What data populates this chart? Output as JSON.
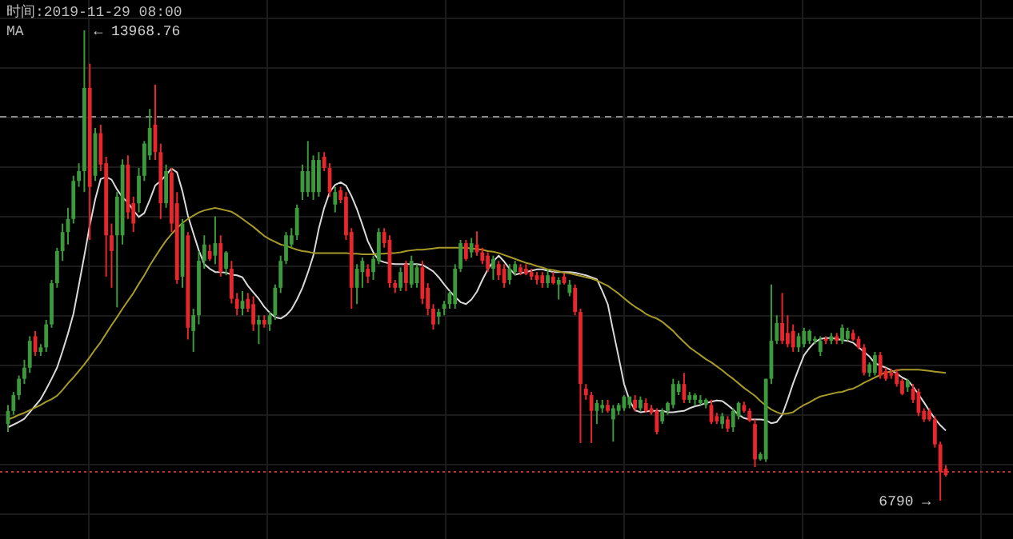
{
  "chart_data": {
    "type": "candlestick",
    "title": "时间:2019-11-29 08:00",
    "legend_title": "MA",
    "grid": true,
    "categories": [
      null,
      null,
      null,
      null,
      null,
      null,
      null,
      null,
      null,
      null,
      null,
      null,
      null,
      null,
      null,
      null,
      null,
      null,
      null,
      null,
      null,
      null,
      null,
      null,
      null,
      null,
      null,
      null,
      null,
      null,
      null,
      null,
      null,
      null,
      null,
      null,
      null,
      null,
      null,
      null,
      null,
      null,
      null,
      null,
      null,
      null,
      null,
      null,
      null,
      null,
      null,
      null,
      null,
      null,
      null,
      null,
      null,
      null,
      null,
      null,
      null,
      null,
      null,
      null,
      null,
      null,
      null,
      null,
      null,
      null,
      null,
      null,
      null,
      null,
      null,
      null,
      null,
      null,
      null,
      null,
      null,
      null,
      null,
      null,
      null,
      null,
      null,
      null,
      null,
      null,
      null,
      null,
      null,
      null,
      null,
      null,
      null,
      null,
      null,
      null,
      null,
      null,
      null,
      null,
      null,
      null,
      null,
      null,
      null,
      null,
      null,
      null,
      null,
      null,
      null,
      null,
      null,
      null,
      null,
      null,
      null,
      null,
      null,
      null,
      null,
      null,
      null,
      null,
      null,
      null,
      null,
      null,
      null,
      null,
      null,
      null,
      null,
      null,
      null,
      null,
      null,
      null,
      null,
      null,
      null,
      null,
      null,
      null,
      null,
      null,
      null,
      null,
      null,
      null,
      null,
      null,
      null,
      null,
      null,
      null,
      null,
      null,
      null,
      null,
      null,
      null,
      null,
      null,
      null,
      null,
      null,
      null,
      null
    ],
    "colors": [
      "#3c9a3c",
      "#3c9a3c",
      "#3c9a3c",
      "#3c9a3c",
      "#3c9a3c",
      "#e8262b",
      "#3c9a3c",
      "#3c9a3c",
      "#3c9a3c",
      "#3c9a3c",
      "#3c9a3c",
      "#3c9a3c",
      "#3c9a3c",
      "#3c9a3c",
      "#3c9a3c",
      "#e8262b",
      "#3c9a3c",
      "#e8262b",
      "#e8262b",
      "#e8262b",
      "#3c9a3c",
      "#3c9a3c",
      "#e8262b",
      "#e8262b",
      "#3c9a3c",
      "#3c9a3c",
      "#3c9a3c",
      "#e8262b",
      "#e8262b",
      "#3c9a3c",
      "#e8262b",
      "#e8262b",
      "#3c9a3c",
      "#e8262b",
      "#3c9a3c",
      "#3c9a3c",
      "#3c9a3c",
      "#e8262b",
      "#3c9a3c",
      "#e8262b",
      "#3c9a3c",
      "#e8262b",
      "#e8262b",
      "#3c9a3c",
      "#e8262b",
      "#e8262b",
      "#3c9a3c",
      "#e8262b",
      "#3c9a3c",
      "#3c9a3c",
      "#3c9a3c",
      "#3c9a3c",
      "#3c9a3c",
      "#3c9a3c",
      "#3c9a3c",
      "#3c9a3c",
      "#3c9a3c",
      "#3c9a3c",
      "#e8262b",
      "#e8262b",
      "#3c9a3c",
      "#e8262b",
      "#e8262b",
      "#e8262b",
      "#3c9a3c",
      "#3c9a3c",
      "#e8262b",
      "#3c9a3c",
      "#3c9a3c",
      "#e8262b",
      "#e8262b",
      "#e8262b",
      "#3c9a3c",
      "#e8262b",
      "#3c9a3c",
      "#3c9a3c",
      "#e8262b",
      "#e8262b",
      "#e8262b",
      "#3c9a3c",
      "#3c9a3c",
      "#3c9a3c",
      "#3c9a3c",
      "#3c9a3c",
      "#e8262b",
      "#3c9a3c",
      "#e8262b",
      "#e8262b",
      "#e8262b",
      "#3c9a3c",
      "#e8262b",
      "#e8262b",
      "#3c9a3c",
      "#3c9a3c",
      "#e8262b",
      "#e8262b",
      "#e8262b",
      "#e8262b",
      "#e8262b",
      "#3c9a3c",
      "#e8262b",
      "#3c9a3c",
      "#e8262b",
      "#3c9a3c",
      "#e8262b",
      "#e8262b",
      "#e8262b",
      "#e8262b",
      "#3c9a3c",
      "#3c9a3c",
      "#e8262b",
      "#3c9a3c",
      "#3c9a3c",
      "#3c9a3c",
      "#3c9a3c",
      "#e8262b",
      "#3c9a3c",
      "#e8262b",
      "#e8262b",
      "#e8262b",
      "#3c9a3c",
      "#3c9a3c",
      "#3c9a3c",
      "#3c9a3c",
      "#e8262b",
      "#3c9a3c",
      "#3c9a3c",
      "#3c9a3c",
      "#3c9a3c",
      "#e8262b",
      "#e8262b",
      "#3c9a3c",
      "#e8262b",
      "#3c9a3c",
      "#3c9a3c",
      "#e8262b",
      "#e8262b",
      "#e8262b",
      "#3c9a3c",
      "#3c9a3c",
      "#3c9a3c",
      "#3c9a3c",
      "#e8262b",
      "#e8262b",
      "#e8262b",
      "#3c9a3c",
      "#3c9a3c",
      "#3c9a3c",
      "#3c9a3c",
      "#3c9a3c",
      "#e8262b",
      "#3c9a3c",
      "#e8262b",
      "#3c9a3c",
      "#3c9a3c",
      "#e8262b",
      "#e8262b",
      "#e8262b",
      "#3c9a3c",
      "#3c9a3c",
      "#e8262b",
      "#e8262b",
      "#e8262b",
      "#e8262b",
      "#e8262b",
      "#3c9a3c",
      "#e8262b",
      "#e8262b",
      "#e8262b",
      "#e8262b",
      "#e8262b",
      "#e8262b",
      "#e8262b"
    ],
    "ohlc": [
      [
        7960,
        8250,
        7840,
        8160
      ],
      [
        8160,
        8450,
        8100,
        8400
      ],
      [
        8400,
        8700,
        8330,
        8650
      ],
      [
        8650,
        8940,
        8570,
        8820
      ],
      [
        8820,
        9300,
        8740,
        9230
      ],
      [
        9300,
        9380,
        9000,
        9060
      ],
      [
        9060,
        9180,
        9000,
        9130
      ],
      [
        9130,
        9550,
        9060,
        9480
      ],
      [
        9480,
        10160,
        9430,
        10110
      ],
      [
        10110,
        10650,
        10040,
        10600
      ],
      [
        10600,
        11020,
        10450,
        10890
      ],
      [
        10890,
        11260,
        10700,
        11090
      ],
      [
        11090,
        11750,
        11020,
        11670
      ],
      [
        11670,
        11940,
        11580,
        11820
      ],
      [
        11820,
        13968.76,
        11500,
        13090
      ],
      [
        13090,
        13460,
        10770,
        11580
      ],
      [
        11750,
        12480,
        11670,
        12400
      ],
      [
        12400,
        12530,
        11820,
        11920
      ],
      [
        11940,
        12040,
        10210,
        10840
      ],
      [
        10840,
        11020,
        10040,
        10600
      ],
      [
        10840,
        11500,
        9740,
        11430
      ],
      [
        10840,
        12000,
        10700,
        11920
      ],
      [
        11920,
        12060,
        11090,
        11190
      ],
      [
        11330,
        11430,
        10890,
        11020
      ],
      [
        11330,
        11870,
        11190,
        11750
      ],
      [
        11750,
        12280,
        11670,
        12240
      ],
      [
        12060,
        12770,
        11990,
        12480
      ],
      [
        12530,
        13140,
        11990,
        12110
      ],
      [
        12110,
        12240,
        11090,
        11330
      ],
      [
        11330,
        11920,
        11260,
        11820
      ],
      [
        11800,
        11870,
        10890,
        11020
      ],
      [
        11330,
        11500,
        10100,
        10160
      ],
      [
        10210,
        11090,
        10040,
        11020
      ],
      [
        10840,
        10890,
        9250,
        9430
      ],
      [
        9380,
        9720,
        9060,
        9620
      ],
      [
        9620,
        10600,
        9480,
        10450
      ],
      [
        10450,
        10840,
        10330,
        10700
      ],
      [
        10600,
        10700,
        10450,
        10480
      ],
      [
        10530,
        11130,
        10400,
        10720
      ],
      [
        10720,
        10840,
        10210,
        10280
      ],
      [
        10330,
        10600,
        10230,
        10580
      ],
      [
        10330,
        10450,
        9800,
        9870
      ],
      [
        9870,
        9960,
        9620,
        9720
      ],
      [
        9720,
        9990,
        9620,
        9840
      ],
      [
        9870,
        9960,
        9670,
        9720
      ],
      [
        9790,
        9910,
        9380,
        9480
      ],
      [
        9480,
        9620,
        9180,
        9550
      ],
      [
        9550,
        9620,
        9430,
        9480
      ],
      [
        9480,
        9670,
        9380,
        9620
      ],
      [
        9620,
        10090,
        9550,
        10040
      ],
      [
        10040,
        10530,
        9960,
        10450
      ],
      [
        10450,
        10890,
        10400,
        10840
      ],
      [
        10700,
        10950,
        10650,
        10840
      ],
      [
        10840,
        11310,
        10770,
        11260
      ],
      [
        11500,
        11920,
        11380,
        11820
      ],
      [
        11500,
        12280,
        11430,
        11820
      ],
      [
        11500,
        12060,
        11380,
        11990
      ],
      [
        11500,
        12110,
        11430,
        11990
      ],
      [
        12040,
        12110,
        11820,
        11870
      ],
      [
        11870,
        11940,
        11430,
        11500
      ],
      [
        11310,
        11580,
        11190,
        11500
      ],
      [
        11530,
        11580,
        11330,
        11380
      ],
      [
        11430,
        11500,
        10770,
        10840
      ],
      [
        10890,
        10950,
        9720,
        10040
      ],
      [
        10040,
        10400,
        9790,
        10330
      ],
      [
        10280,
        10500,
        10040,
        10450
      ],
      [
        10330,
        10400,
        10110,
        10210
      ],
      [
        10280,
        10530,
        10160,
        10480
      ],
      [
        10450,
        10950,
        10400,
        10890
      ],
      [
        10890,
        10950,
        10650,
        10720
      ],
      [
        10770,
        10840,
        10040,
        10110
      ],
      [
        10110,
        10160,
        9960,
        10040
      ],
      [
        10040,
        10350,
        9990,
        10280
      ],
      [
        10400,
        10450,
        9990,
        10110
      ],
      [
        10090,
        10530,
        10040,
        10450
      ],
      [
        10110,
        10400,
        10040,
        10350
      ],
      [
        10350,
        10450,
        9790,
        9870
      ],
      [
        10040,
        10110,
        9620,
        9720
      ],
      [
        9720,
        9790,
        9400,
        9480
      ],
      [
        9600,
        9720,
        9480,
        9670
      ],
      [
        9720,
        9840,
        9620,
        9790
      ],
      [
        9790,
        9990,
        9720,
        9960
      ],
      [
        9790,
        10400,
        9720,
        10330
      ],
      [
        10330,
        10770,
        10280,
        10720
      ],
      [
        10720,
        10770,
        10450,
        10480
      ],
      [
        10580,
        10800,
        10500,
        10720
      ],
      [
        10700,
        10900,
        10530,
        10580
      ],
      [
        10580,
        10650,
        10400,
        10450
      ],
      [
        10530,
        10580,
        10280,
        10330
      ],
      [
        10330,
        10530,
        10160,
        10480
      ],
      [
        10400,
        10450,
        10160,
        10230
      ],
      [
        10330,
        10400,
        10040,
        10110
      ],
      [
        10160,
        10400,
        10090,
        10330
      ],
      [
        10280,
        10450,
        10230,
        10400
      ],
      [
        10350,
        10400,
        10230,
        10280
      ],
      [
        10330,
        10400,
        10230,
        10250
      ],
      [
        10280,
        10330,
        10160,
        10210
      ],
      [
        10230,
        10280,
        10090,
        10160
      ],
      [
        10230,
        10280,
        10040,
        10110
      ],
      [
        10110,
        10330,
        10040,
        10230
      ],
      [
        10210,
        10280,
        10090,
        10110
      ],
      [
        10090,
        10200,
        9860,
        10160
      ],
      [
        10210,
        10260,
        10090,
        10110
      ],
      [
        9960,
        10160,
        9910,
        10090
      ],
      [
        10040,
        10090,
        9620,
        9670
      ],
      [
        9670,
        9720,
        7670,
        8570
      ],
      [
        8500,
        8570,
        8330,
        8400
      ],
      [
        8400,
        8450,
        7670,
        8160
      ],
      [
        8160,
        8330,
        7960,
        8280
      ],
      [
        8200,
        8330,
        8130,
        8250
      ],
      [
        8250,
        8330,
        8130,
        8160
      ],
      [
        8030,
        8250,
        7690,
        8200
      ],
      [
        8160,
        8280,
        8100,
        8250
      ],
      [
        8200,
        8400,
        8160,
        8380
      ],
      [
        8250,
        8380,
        8200,
        8380
      ],
      [
        8330,
        8400,
        8150,
        8200
      ],
      [
        8200,
        8380,
        8160,
        8330
      ],
      [
        8280,
        8350,
        8130,
        8160
      ],
      [
        8200,
        8250,
        8100,
        8130
      ],
      [
        8160,
        8200,
        7800,
        7840
      ],
      [
        8000,
        8200,
        7960,
        8160
      ],
      [
        8160,
        8300,
        8100,
        8280
      ],
      [
        8250,
        8650,
        8200,
        8570
      ],
      [
        8450,
        8620,
        8400,
        8570
      ],
      [
        8570,
        8740,
        8280,
        8330
      ],
      [
        8330,
        8450,
        8280,
        8400
      ],
      [
        8330,
        8430,
        8250,
        8400
      ],
      [
        8280,
        8400,
        8250,
        8330
      ],
      [
        8250,
        8350,
        8200,
        8330
      ],
      [
        8250,
        8330,
        7960,
        7990
      ],
      [
        8080,
        8130,
        7960,
        8000
      ],
      [
        7960,
        8130,
        7890,
        8080
      ],
      [
        8030,
        8080,
        7840,
        7890
      ],
      [
        7910,
        8200,
        7840,
        8160
      ],
      [
        8080,
        8300,
        8030,
        8280
      ],
      [
        8250,
        8300,
        8130,
        8160
      ],
      [
        8160,
        8200,
        7990,
        8010
      ],
      [
        7960,
        8030,
        7300,
        7420
      ],
      [
        7420,
        7530,
        7400,
        7500
      ],
      [
        7420,
        8650,
        7380,
        8650
      ],
      [
        8650,
        10090,
        8570,
        9230
      ],
      [
        9230,
        9620,
        9180,
        9500
      ],
      [
        9500,
        9960,
        9180,
        9230
      ],
      [
        9350,
        9620,
        9130,
        9180
      ],
      [
        9380,
        9480,
        9060,
        9130
      ],
      [
        9130,
        9350,
        9060,
        9300
      ],
      [
        9180,
        9430,
        9130,
        9380
      ],
      [
        9230,
        9400,
        9180,
        9380
      ],
      [
        9230,
        9300,
        9180,
        9260
      ],
      [
        9060,
        9300,
        9000,
        9230
      ],
      [
        9260,
        9300,
        9180,
        9230
      ],
      [
        9230,
        9350,
        9180,
        9300
      ],
      [
        9300,
        9350,
        9180,
        9230
      ],
      [
        9230,
        9480,
        9180,
        9430
      ],
      [
        9260,
        9430,
        9230,
        9380
      ],
      [
        9350,
        9400,
        9230,
        9250
      ],
      [
        9260,
        9300,
        9100,
        9130
      ],
      [
        9130,
        9180,
        8700,
        8740
      ],
      [
        8740,
        8900,
        8680,
        8870
      ],
      [
        8740,
        9060,
        8700,
        9010
      ],
      [
        9010,
        9060,
        8650,
        8700
      ],
      [
        8770,
        8820,
        8620,
        8650
      ],
      [
        8740,
        8800,
        8650,
        8700
      ],
      [
        8740,
        8800,
        8530,
        8570
      ],
      [
        8620,
        8650,
        8400,
        8420
      ],
      [
        8520,
        8650,
        8450,
        8620
      ],
      [
        8500,
        8570,
        8280,
        8330
      ],
      [
        8450,
        8500,
        8080,
        8130
      ],
      [
        8160,
        8200,
        7990,
        8030
      ],
      [
        8160,
        8200,
        8000,
        8030
      ],
      [
        8030,
        8080,
        7600,
        7650
      ],
      [
        7650,
        7690,
        6790,
        7230
      ],
      [
        7280,
        7330,
        7160,
        7180
      ]
    ],
    "series": [
      {
        "type": "line",
        "color": "#d9d9d9",
        "values": [
          7910,
          7950,
          7990,
          8040,
          8140,
          8240,
          8340,
          8490,
          8650,
          8820,
          9070,
          9340,
          9640,
          10080,
          10530,
          10990,
          11390,
          11700,
          11730,
          11690,
          11540,
          11420,
          11340,
          11220,
          11120,
          11180,
          11380,
          11600,
          11670,
          11760,
          11860,
          11800,
          11510,
          11140,
          10870,
          10610,
          10400,
          10330,
          10280,
          10280,
          10270,
          10240,
          10230,
          10200,
          10070,
          9970,
          9870,
          9750,
          9660,
          9590,
          9570,
          9620,
          9710,
          9860,
          10040,
          10270,
          10530,
          10940,
          11260,
          11500,
          11610,
          11650,
          11600,
          11440,
          11240,
          11000,
          10750,
          10580,
          10460,
          10430,
          10410,
          10400,
          10400,
          10400,
          10400,
          10400,
          10390,
          10340,
          10290,
          10200,
          10090,
          9990,
          9900,
          9820,
          9790,
          9860,
          9980,
          10160,
          10320,
          10440,
          10530,
          10440,
          10330,
          10240,
          10260,
          10280,
          10300,
          10320,
          10320,
          10300,
          10280,
          10280,
          10280,
          10280,
          10270,
          10250,
          10230,
          10200,
          10170,
          9990,
          9790,
          9380,
          8980,
          8570,
          8320,
          8170,
          8140,
          8150,
          8160,
          8160,
          8160,
          8140,
          8140,
          8150,
          8160,
          8200,
          8230,
          8250,
          8280,
          8300,
          8320,
          8310,
          8250,
          8180,
          8100,
          8050,
          8030,
          8030,
          8030,
          8020,
          7970,
          7990,
          8100,
          8330,
          8580,
          8800,
          9010,
          9120,
          9210,
          9260,
          9270,
          9270,
          9260,
          9240,
          9230,
          9200,
          9130,
          9060,
          8990,
          8890,
          8850,
          8820,
          8780,
          8730,
          8670,
          8630,
          8530,
          8410,
          8290,
          8160,
          8040,
          7940,
          7860
        ]
      },
      {
        "type": "line",
        "color": "#a89a2a",
        "values": [
          8030,
          8060,
          8100,
          8130,
          8170,
          8210,
          8250,
          8300,
          8340,
          8390,
          8480,
          8580,
          8670,
          8770,
          8870,
          8980,
          9100,
          9210,
          9340,
          9470,
          9590,
          9720,
          9840,
          9960,
          10100,
          10230,
          10380,
          10510,
          10640,
          10760,
          10860,
          10950,
          11030,
          11090,
          11140,
          11190,
          11220,
          11240,
          11260,
          11240,
          11220,
          11200,
          11150,
          11090,
          11030,
          10970,
          10900,
          10830,
          10780,
          10740,
          10700,
          10680,
          10650,
          10620,
          10600,
          10590,
          10570,
          10570,
          10570,
          10570,
          10570,
          10570,
          10570,
          10560,
          10560,
          10550,
          10550,
          10550,
          10560,
          10560,
          10570,
          10570,
          10580,
          10600,
          10610,
          10620,
          10620,
          10630,
          10640,
          10650,
          10650,
          10650,
          10650,
          10650,
          10650,
          10640,
          10630,
          10620,
          10600,
          10590,
          10570,
          10540,
          10510,
          10480,
          10450,
          10420,
          10400,
          10370,
          10350,
          10320,
          10310,
          10290,
          10270,
          10260,
          10240,
          10220,
          10200,
          10180,
          10150,
          10110,
          10070,
          10010,
          9950,
          9880,
          9810,
          9750,
          9700,
          9640,
          9600,
          9570,
          9520,
          9450,
          9380,
          9290,
          9210,
          9130,
          9070,
          9010,
          8950,
          8900,
          8840,
          8780,
          8710,
          8650,
          8580,
          8510,
          8450,
          8390,
          8310,
          8240,
          8180,
          8140,
          8110,
          8120,
          8140,
          8200,
          8250,
          8290,
          8340,
          8380,
          8400,
          8420,
          8440,
          8450,
          8480,
          8500,
          8540,
          8590,
          8630,
          8670,
          8710,
          8750,
          8760,
          8780,
          8790,
          8790,
          8790,
          8790,
          8780,
          8770,
          8760,
          8750,
          8740
        ]
      }
    ],
    "ref_lines": [
      {
        "axis": "y",
        "value": 12650,
        "color": "#8a8a8a",
        "line_style": "dashed"
      },
      {
        "axis": "y",
        "value": 7230,
        "color": "#c0302f",
        "line_style": "dotted"
      }
    ],
    "annotations": [
      "← 13968.76",
      "6790 →"
    ]
  }
}
